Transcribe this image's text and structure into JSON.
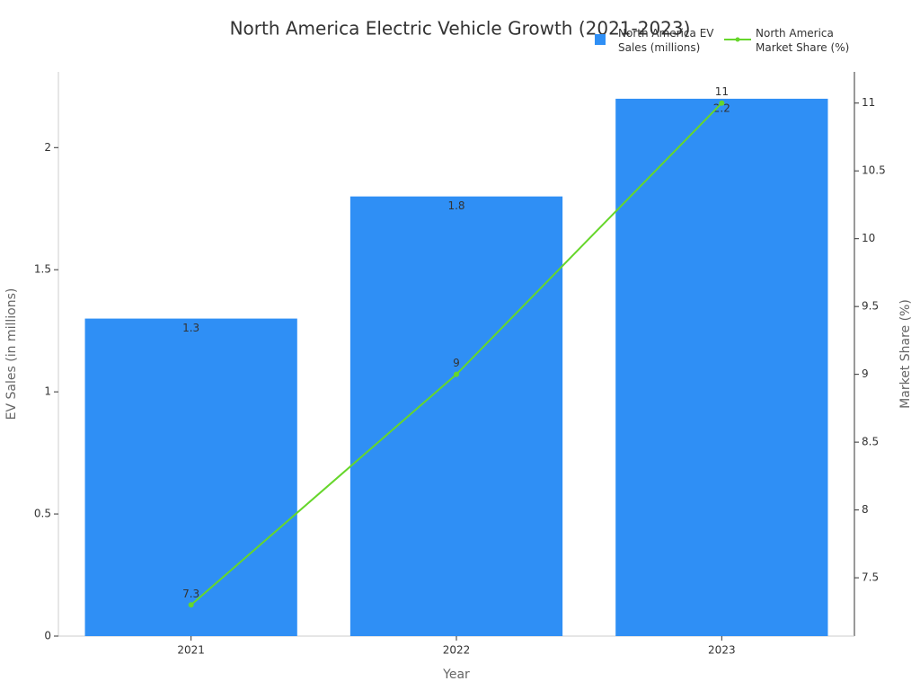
{
  "chart_data": {
    "type": "bar_line",
    "title": "North America Electric Vehicle Growth (2021-2023)",
    "x_label": "Year",
    "y_label": "EV Sales (in millions)",
    "y2_label": "Market Share (%)",
    "categories": [
      "2021",
      "2022",
      "2023"
    ],
    "series": [
      {
        "name": "North America EV Sales (millions)",
        "type": "bar",
        "color": "#2f8ff5",
        "values": [
          1.3,
          1.8,
          2.2
        ]
      },
      {
        "name": "North America Market Share (%)",
        "type": "line",
        "axis": "y2",
        "color": "#66d62b",
        "values": [
          7.3,
          9,
          11
        ]
      }
    ],
    "ylim": [
      0,
      2.31
    ],
    "yticks": [
      0,
      0.5,
      1,
      1.5,
      2
    ],
    "y2lim": [
      7.07,
      11.23
    ],
    "y2ticks": [
      7.5,
      8,
      8.5,
      9,
      9.5,
      10,
      10.5,
      11
    ],
    "grid": false
  }
}
